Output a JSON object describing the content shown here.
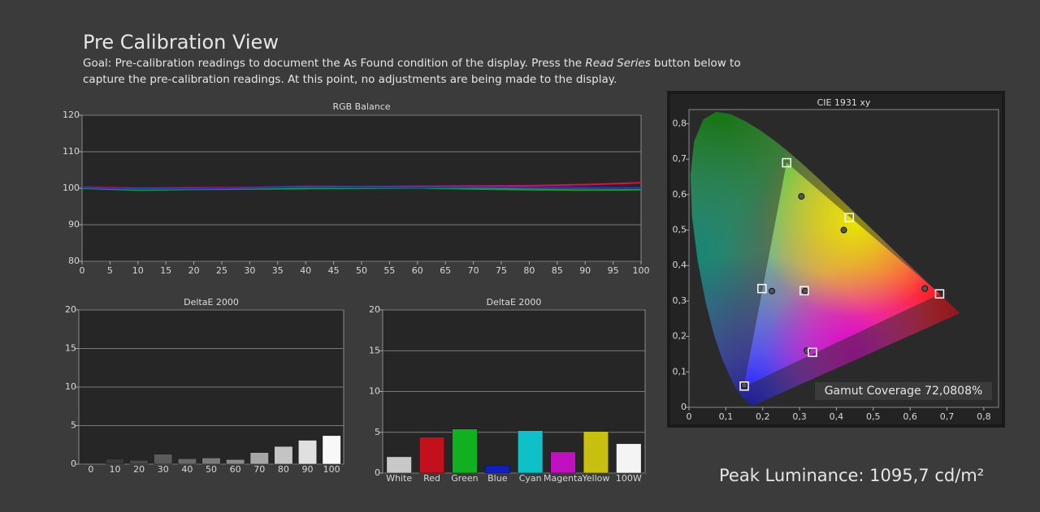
{
  "header": {
    "title": "Pre Calibration View",
    "goal": [
      "Goal: Pre-calibration readings to document the As Found condition of the display. Press the ",
      "Read Series",
      " button below to",
      "capture the pre-calibration readings. At this point, no adjustments are being made to the display."
    ]
  },
  "chart_data": [
    {
      "type": "line",
      "title": "RGB Balance",
      "x": [
        0,
        10,
        20,
        30,
        40,
        50,
        60,
        70,
        80,
        90,
        100
      ],
      "series": [
        {
          "color": "#e0103a",
          "values": [
            100.3,
            100.0,
            100.1,
            100.2,
            100.5,
            100.4,
            100.5,
            100.6,
            100.7,
            101.0,
            101.5
          ]
        },
        {
          "color": "#10a020",
          "values": [
            100.0,
            99.5,
            99.7,
            99.8,
            99.9,
            100.0,
            100.1,
            99.8,
            99.6,
            99.5,
            99.6
          ]
        },
        {
          "color": "#2030e0",
          "values": [
            100.2,
            99.8,
            99.9,
            100.1,
            100.3,
            100.2,
            100.2,
            100.3,
            100.2,
            100.2,
            100.1
          ]
        }
      ],
      "xlim": [
        0,
        100
      ],
      "xticks": [
        0,
        5,
        10,
        15,
        20,
        25,
        30,
        35,
        40,
        45,
        50,
        55,
        60,
        65,
        70,
        75,
        80,
        85,
        90,
        95,
        100
      ],
      "ylim": [
        80,
        120
      ],
      "yticks": [
        80,
        90,
        100,
        110,
        120
      ],
      "grid": true
    },
    {
      "type": "bar",
      "title": "DeltaE 2000",
      "categories": [
        "0",
        "10",
        "20",
        "30",
        "40",
        "50",
        "60",
        "70",
        "80",
        "90",
        "100"
      ],
      "values": [
        0,
        0.7,
        0.5,
        1.3,
        0.7,
        0.8,
        0.6,
        1.5,
        2.3,
        3.1,
        3.7
      ],
      "colors": [
        "#202020",
        "#3a3a3a",
        "#4a4a4a",
        "#5a5a5a",
        "#6a6a6a",
        "#7a7a7a",
        "#8c8c8c",
        "#a6a6a6",
        "#c4c4c4",
        "#e0e0e0",
        "#f8f8f8"
      ],
      "ylim": [
        0,
        20
      ],
      "yticks": [
        0,
        5,
        10,
        15,
        20
      ],
      "grid": true
    },
    {
      "type": "bar",
      "title": "DeltaE 2000",
      "categories": [
        "White",
        "Red",
        "Green",
        "Blue",
        "Cyan",
        "Magenta",
        "Yellow",
        "100W"
      ],
      "values": [
        2.0,
        4.4,
        5.4,
        0.9,
        5.2,
        2.6,
        5.1,
        3.6
      ],
      "colors": [
        "#c8c8c8",
        "#c4101c",
        "#10b020",
        "#1020c0",
        "#10c0c8",
        "#c010c0",
        "#c8c010",
        "#f4f4f4"
      ],
      "ylim": [
        0,
        20
      ],
      "yticks": [
        0,
        5,
        10,
        15,
        20
      ],
      "grid": true
    },
    {
      "type": "scatter",
      "title": "CIE 1931 xy",
      "series": [
        {
          "marker": "circle",
          "color": "#555555",
          "x": [
            0.64,
            0.305,
            0.15,
            0.225,
            0.32,
            0.42,
            0.315
          ],
          "y": [
            0.335,
            0.595,
            0.062,
            0.328,
            0.16,
            0.5,
            0.328
          ]
        },
        {
          "marker": "square",
          "color": "#ffffff",
          "x": [
            0.68,
            0.265,
            0.15,
            0.198,
            0.335,
            0.435,
            0.3127
          ],
          "y": [
            0.32,
            0.69,
            0.06,
            0.335,
            0.155,
            0.535,
            0.329
          ]
        }
      ],
      "xlim": [
        0,
        0.84
      ],
      "xticks": [
        0,
        {
          "value": 0.1,
          "label": "0,1"
        },
        {
          "value": 0.2,
          "label": "0,2"
        },
        {
          "value": 0.3,
          "label": "0,3"
        },
        {
          "value": 0.4,
          "label": "0,4"
        },
        {
          "value": 0.5,
          "label": "0,5"
        },
        {
          "value": 0.6,
          "label": "0,6"
        },
        {
          "value": 0.7,
          "label": "0,7"
        },
        {
          "value": 0.8,
          "label": "0,8"
        }
      ],
      "ylim": [
        0,
        0.84
      ],
      "yticks": [
        0,
        {
          "value": 0.1,
          "label": "0,1"
        },
        {
          "value": 0.2,
          "label": "0,2"
        },
        {
          "value": 0.3,
          "label": "0,3"
        },
        {
          "value": 0.4,
          "label": "0,4"
        },
        {
          "value": 0.5,
          "label": "0,5"
        },
        {
          "value": 0.6,
          "label": "0,6"
        },
        {
          "value": 0.7,
          "label": "0,7"
        },
        {
          "value": 0.8,
          "label": "0,8"
        }
      ],
      "grid": false
    }
  ],
  "gamut_coverage": "Gamut Coverage 72,0808%",
  "peak_luminance": "Peak Luminance: 1095,7 cd/m²"
}
